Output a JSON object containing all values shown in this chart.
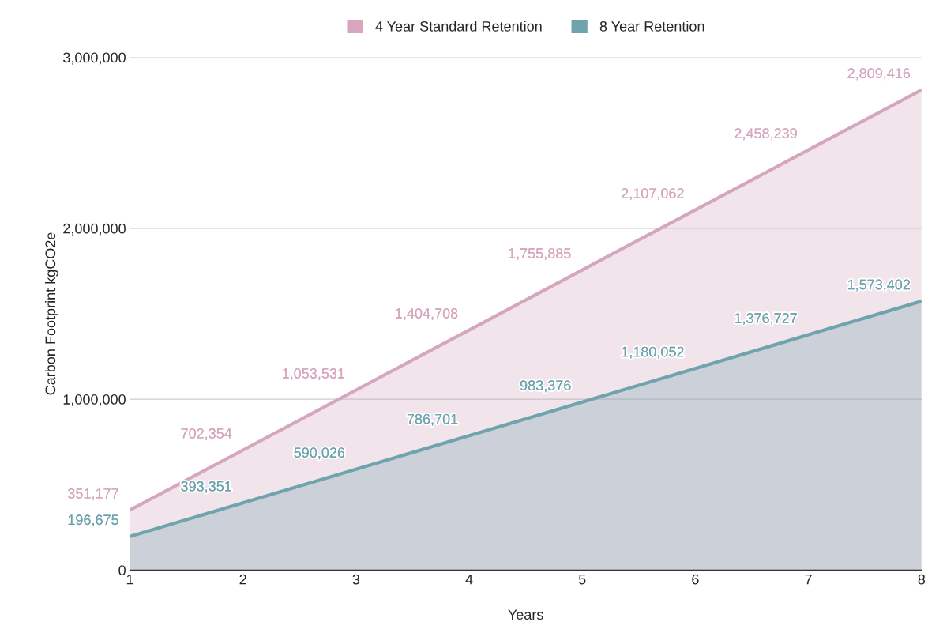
{
  "chart_data": {
    "type": "area",
    "xlabel": "Years",
    "ylabel": "Carbon Footprint kgCO2e",
    "x": [
      1,
      2,
      3,
      4,
      5,
      6,
      7,
      8
    ],
    "series": [
      {
        "name": "4 Year Standard Retention",
        "color": "#d5a6bd",
        "values": [
          351177,
          702354,
          1053531,
          1404708,
          1755885,
          2107062,
          2458239,
          2809416
        ],
        "value_labels": [
          "351,177",
          "702,354",
          "1,053,531",
          "1,404,708",
          "1,755,885",
          "2,107,062",
          "2,458,239",
          "2,809,416"
        ]
      },
      {
        "name": "8 Year Retention",
        "color": "#6fa3ae",
        "values": [
          196675,
          393351,
          590026,
          786701,
          983376,
          1180052,
          1376727,
          1573402
        ],
        "value_labels": [
          "196,675",
          "393,351",
          "590,026",
          "786,701",
          "983,376",
          "1,180,052",
          "1,376,727",
          "1,573,402"
        ]
      }
    ],
    "xlim": [
      1,
      8
    ],
    "xticks": [
      1,
      2,
      3,
      4,
      5,
      6,
      7,
      8
    ],
    "ylim": [
      0,
      3000000
    ],
    "yticks": [
      {
        "value": 0,
        "label": "0"
      },
      {
        "value": 1000000,
        "label": "1,000,000"
      },
      {
        "value": 2000000,
        "label": "2,000,000"
      },
      {
        "value": 3000000,
        "label": "3,000,000"
      }
    ],
    "grid": "y",
    "legend": "top"
  }
}
